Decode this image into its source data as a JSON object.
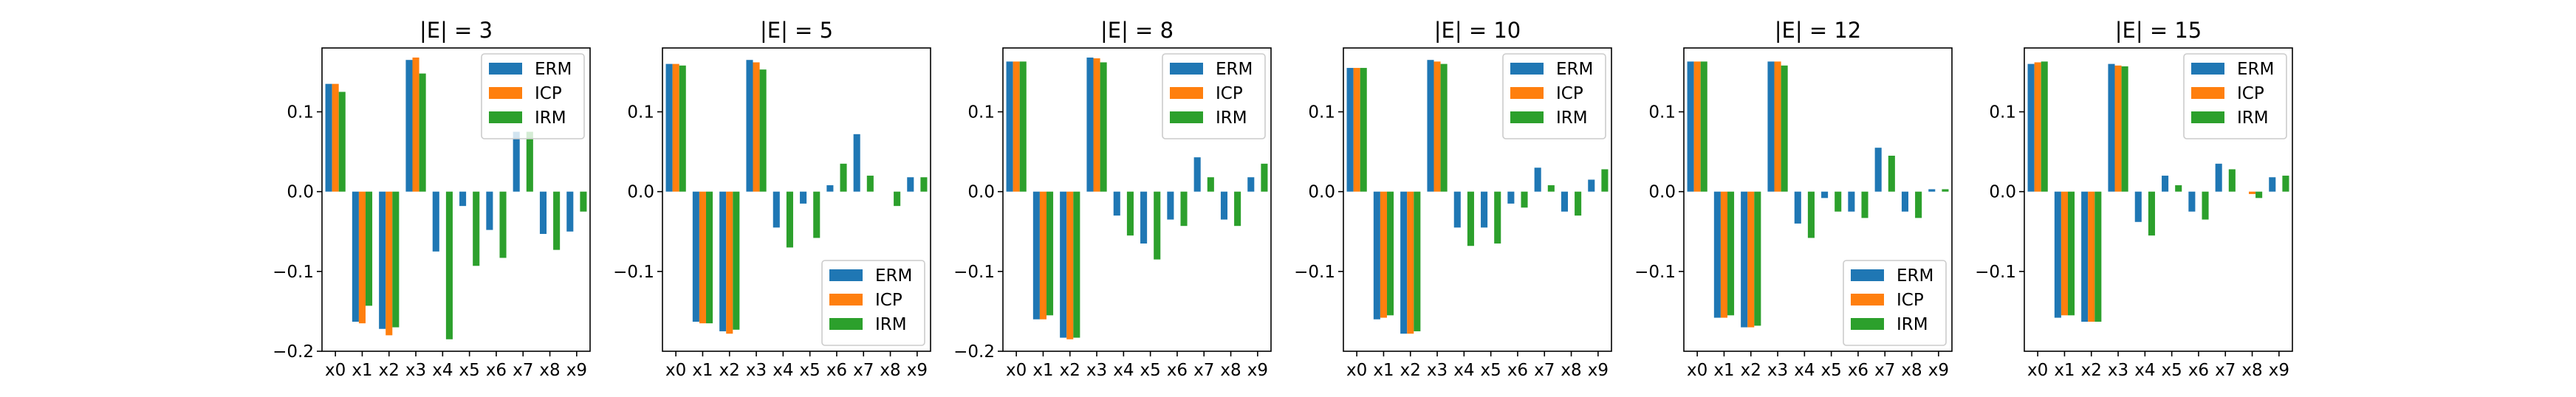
{
  "figure": {
    "background": "#ffffff"
  },
  "legend_order": [
    "ERM",
    "ICP",
    "IRM"
  ],
  "series_colors": {
    "ERM": "#1f77b4",
    "ICP": "#ff7f0e",
    "IRM": "#2ca02c"
  },
  "chart_data": [
    {
      "type": "bar",
      "title": "|E| = 3",
      "categories": [
        "x0",
        "x1",
        "x2",
        "x3",
        "x4",
        "x5",
        "x6",
        "x7",
        "x8",
        "x9"
      ],
      "ylim": [
        -0.2,
        0.18
      ],
      "yticks": [
        -0.2,
        -0.1,
        0.0,
        0.1
      ],
      "ytick_labels": [
        "−0.2",
        "−0.1",
        "0.0",
        "0.1"
      ],
      "legend_position": "upper right",
      "series": [
        {
          "name": "ERM",
          "values": [
            0.135,
            -0.163,
            -0.172,
            0.165,
            -0.075,
            -0.018,
            -0.048,
            0.075,
            -0.053,
            -0.05
          ]
        },
        {
          "name": "ICP",
          "values": [
            0.135,
            -0.165,
            -0.18,
            0.168,
            0.0,
            0.0,
            0.0,
            0.0,
            0.0,
            0.0
          ]
        },
        {
          "name": "IRM",
          "values": [
            0.125,
            -0.143,
            -0.17,
            0.148,
            -0.185,
            -0.093,
            -0.083,
            0.075,
            -0.073,
            -0.025
          ]
        }
      ]
    },
    {
      "type": "bar",
      "title": "|E| = 5",
      "categories": [
        "x0",
        "x1",
        "x2",
        "x3",
        "x4",
        "x5",
        "x6",
        "x7",
        "x8",
        "x9"
      ],
      "ylim": [
        -0.2,
        0.18
      ],
      "yticks": [
        -0.1,
        0.0,
        0.1
      ],
      "ytick_labels": [
        "−0.1",
        "0.0",
        "0.1"
      ],
      "legend_position": "lower right",
      "series": [
        {
          "name": "ERM",
          "values": [
            0.16,
            -0.163,
            -0.175,
            0.165,
            -0.045,
            -0.015,
            0.008,
            0.072,
            0.0,
            0.018
          ]
        },
        {
          "name": "ICP",
          "values": [
            0.16,
            -0.165,
            -0.178,
            0.162,
            0.0,
            0.0,
            0.0,
            0.0,
            0.0,
            0.0
          ]
        },
        {
          "name": "IRM",
          "values": [
            0.158,
            -0.165,
            -0.173,
            0.153,
            -0.07,
            -0.058,
            0.035,
            0.02,
            -0.018,
            0.018
          ]
        }
      ]
    },
    {
      "type": "bar",
      "title": "|E| = 8",
      "categories": [
        "x0",
        "x1",
        "x2",
        "x3",
        "x4",
        "x5",
        "x6",
        "x7",
        "x8",
        "x9"
      ],
      "ylim": [
        -0.2,
        0.18
      ],
      "yticks": [
        -0.2,
        -0.1,
        0.0,
        0.1
      ],
      "ytick_labels": [
        "−0.2",
        "−0.1",
        "0.0",
        "0.1"
      ],
      "legend_position": "upper right",
      "series": [
        {
          "name": "ERM",
          "values": [
            0.163,
            -0.16,
            -0.183,
            0.168,
            -0.03,
            -0.065,
            -0.035,
            0.043,
            -0.035,
            0.018
          ]
        },
        {
          "name": "ICP",
          "values": [
            0.163,
            -0.16,
            -0.185,
            0.167,
            0.0,
            0.0,
            0.0,
            0.0,
            0.0,
            0.0
          ]
        },
        {
          "name": "IRM",
          "values": [
            0.163,
            -0.155,
            -0.183,
            0.162,
            -0.055,
            -0.085,
            -0.043,
            0.018,
            -0.043,
            0.035
          ]
        }
      ]
    },
    {
      "type": "bar",
      "title": "|E| = 10",
      "categories": [
        "x0",
        "x1",
        "x2",
        "x3",
        "x4",
        "x5",
        "x6",
        "x7",
        "x8",
        "x9"
      ],
      "ylim": [
        -0.2,
        0.18
      ],
      "yticks": [
        -0.1,
        0.0,
        0.1
      ],
      "ytick_labels": [
        "−0.1",
        "0.0",
        "0.1"
      ],
      "legend_position": "upper right",
      "series": [
        {
          "name": "ERM",
          "values": [
            0.155,
            -0.16,
            -0.178,
            0.165,
            -0.045,
            -0.045,
            -0.015,
            0.03,
            -0.025,
            0.015
          ]
        },
        {
          "name": "ICP",
          "values": [
            0.155,
            -0.158,
            -0.178,
            0.163,
            0.0,
            0.0,
            0.0,
            0.0,
            0.0,
            0.0
          ]
        },
        {
          "name": "IRM",
          "values": [
            0.155,
            -0.155,
            -0.175,
            0.16,
            -0.068,
            -0.065,
            -0.02,
            0.008,
            -0.03,
            0.028
          ]
        }
      ]
    },
    {
      "type": "bar",
      "title": "|E| = 12",
      "categories": [
        "x0",
        "x1",
        "x2",
        "x3",
        "x4",
        "x5",
        "x6",
        "x7",
        "x8",
        "x9"
      ],
      "ylim": [
        -0.2,
        0.18
      ],
      "yticks": [
        -0.1,
        0.0,
        0.1
      ],
      "ytick_labels": [
        "−0.1",
        "0.0",
        "0.1"
      ],
      "legend_position": "lower right",
      "series": [
        {
          "name": "ERM",
          "values": [
            0.163,
            -0.158,
            -0.17,
            0.163,
            -0.04,
            -0.008,
            -0.025,
            0.055,
            -0.025,
            0.003
          ]
        },
        {
          "name": "ICP",
          "values": [
            0.163,
            -0.158,
            -0.17,
            0.163,
            0.0,
            0.0,
            0.0,
            0.0,
            0.0,
            0.0
          ]
        },
        {
          "name": "IRM",
          "values": [
            0.163,
            -0.155,
            -0.168,
            0.158,
            -0.058,
            -0.025,
            -0.033,
            0.045,
            -0.033,
            0.003
          ]
        }
      ]
    },
    {
      "type": "bar",
      "title": "|E| = 15",
      "categories": [
        "x0",
        "x1",
        "x2",
        "x3",
        "x4",
        "x5",
        "x6",
        "x7",
        "x8",
        "x9"
      ],
      "ylim": [
        -0.2,
        0.18
      ],
      "yticks": [
        -0.1,
        0.0,
        0.1
      ],
      "ytick_labels": [
        "−0.1",
        "0.0",
        "0.1"
      ],
      "legend_position": "upper right",
      "series": [
        {
          "name": "ERM",
          "values": [
            0.16,
            -0.158,
            -0.163,
            0.16,
            -0.038,
            0.02,
            -0.025,
            0.035,
            0.0,
            0.018
          ]
        },
        {
          "name": "ICP",
          "values": [
            0.162,
            -0.155,
            -0.163,
            0.158,
            0.0,
            0.0,
            0.0,
            0.0,
            -0.003,
            0.0
          ]
        },
        {
          "name": "IRM",
          "values": [
            0.163,
            -0.155,
            -0.163,
            0.157,
            -0.055,
            0.008,
            -0.035,
            0.028,
            -0.008,
            0.02
          ]
        }
      ]
    }
  ]
}
